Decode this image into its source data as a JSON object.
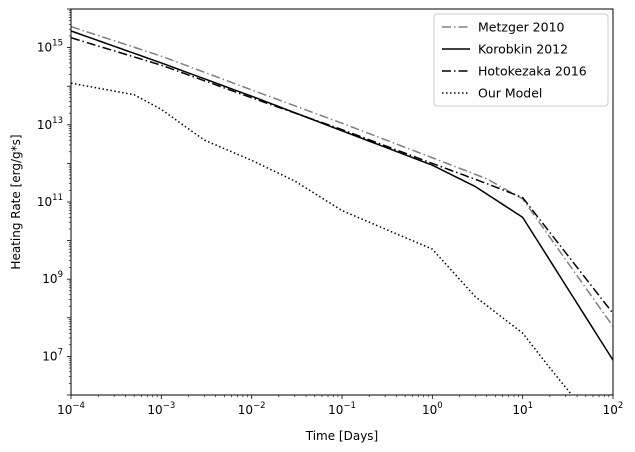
{
  "chart_data": {
    "type": "line",
    "xlabel": "Time [Days]",
    "ylabel": "Heating Rate [erg/g*s]",
    "xscale": "log",
    "yscale": "log",
    "xlim": [
      0.0001,
      100
    ],
    "ylim": [
      1000000,
      10000000000000000
    ],
    "x_ticks": [
      {
        "value": 0.0001,
        "base": "10",
        "exp": "−4"
      },
      {
        "value": 0.001,
        "base": "10",
        "exp": "−3"
      },
      {
        "value": 0.01,
        "base": "10",
        "exp": "−2"
      },
      {
        "value": 0.1,
        "base": "10",
        "exp": "−1"
      },
      {
        "value": 1,
        "base": "10",
        "exp": "0"
      },
      {
        "value": 10,
        "base": "10",
        "exp": "1"
      },
      {
        "value": 100,
        "base": "10",
        "exp": "2"
      }
    ],
    "y_ticks": [
      {
        "value": 10000000,
        "base": "10",
        "exp": "7"
      },
      {
        "value": 1000000000,
        "base": "10",
        "exp": "9"
      },
      {
        "value": 100000000000,
        "base": "10",
        "exp": "11"
      },
      {
        "value": 10000000000000,
        "base": "10",
        "exp": "13"
      },
      {
        "value": 1000000000000000,
        "base": "10",
        "exp": "15"
      }
    ],
    "grid": false,
    "legend_position": "top-right",
    "series": [
      {
        "name": "Metzger 2010",
        "color": "#808080",
        "dash": "dashdot",
        "x": [
          0.0001,
          0.001,
          0.01,
          0.1,
          1,
          4,
          10,
          100
        ],
        "y": [
          3500000000000000.0,
          600000000000000.0,
          80000000000000.0,
          11000000000000.0,
          1400000000000.0,
          400000000000.0,
          120000000000.0,
          60000000.0
        ]
      },
      {
        "name": "Korobkin 2012",
        "color": "#000000",
        "dash": "solid",
        "x": [
          0.0001,
          0.001,
          0.01,
          0.1,
          1,
          3,
          10,
          100
        ],
        "y": [
          2700000000000000.0,
          400000000000000.0,
          55000000000000.0,
          7000000000000.0,
          900000000000.0,
          250000000000.0,
          40000000000.0,
          8000000.0
        ]
      },
      {
        "name": "Hotokezaka 2016",
        "color": "#000000",
        "dash": "dashdot",
        "x": [
          0.0001,
          0.001,
          0.01,
          0.1,
          1,
          4,
          10,
          100
        ],
        "y": [
          1800000000000000.0,
          350000000000000.0,
          50000000000000.0,
          7500000000000.0,
          1000000000000.0,
          300000000000.0,
          130000000000.0,
          130000000.0
        ]
      },
      {
        "name": "Our Model",
        "color": "#000000",
        "dash": "dotted",
        "x": [
          0.0001,
          0.0005,
          0.001,
          0.003,
          0.01,
          0.03,
          0.1,
          0.3,
          1,
          3,
          10,
          20,
          35
        ],
        "y": [
          120000000000000.0,
          60000000000000.0,
          25000000000000.0,
          4000000000000.0,
          1200000000000.0,
          350000000000.0,
          60000000000.0,
          20000000000.0,
          6000000000.0,
          350000000.0,
          40000000.0,
          5000000.0,
          1000000.0
        ]
      }
    ]
  }
}
